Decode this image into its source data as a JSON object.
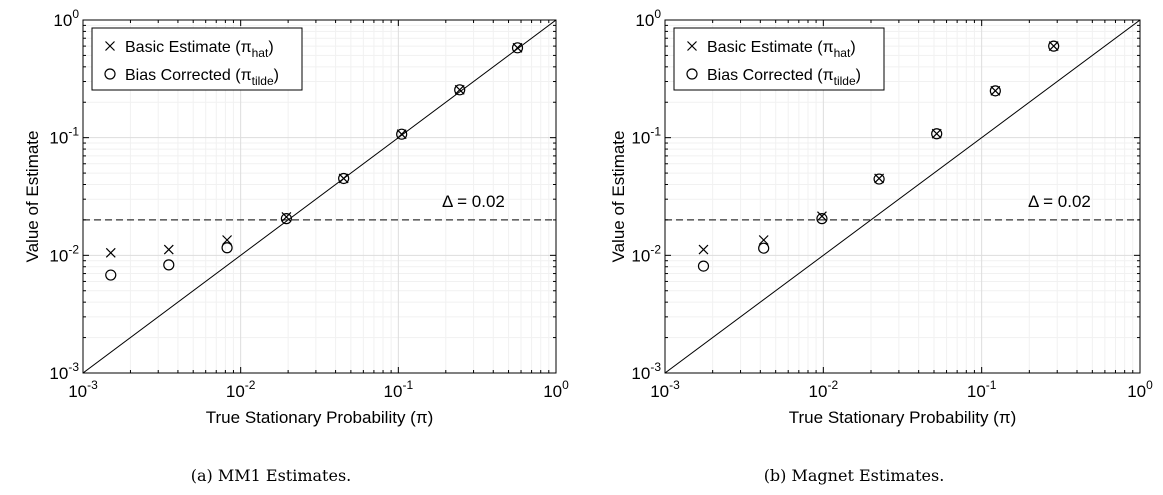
{
  "chart_data": [
    {
      "type": "scatter",
      "caption": "(a) MM1 Estimates.",
      "xlabel": "True Stationary Probability (π)",
      "ylabel": "Value of Estimate",
      "xscale": "log",
      "yscale": "log",
      "xlim": [
        0.001,
        1
      ],
      "ylim": [
        0.001,
        1
      ],
      "grid": true,
      "legend_placement": "top-left",
      "series": [
        {
          "name": "Basic Estimate (π_hat)",
          "marker": "x",
          "x": [
            0.0015,
            0.0035,
            0.0082,
            0.0195,
            0.045,
            0.105,
            0.245,
            0.57
          ],
          "y": [
            0.0105,
            0.0112,
            0.0135,
            0.0212,
            0.045,
            0.107,
            0.255,
            0.58
          ]
        },
        {
          "name": "Bias Corrected (π_tilde)",
          "marker": "o",
          "x": [
            0.0015,
            0.0035,
            0.0082,
            0.0195,
            0.045,
            0.105,
            0.245,
            0.57
          ],
          "y": [
            0.0068,
            0.0083,
            0.0116,
            0.0205,
            0.045,
            0.107,
            0.255,
            0.58
          ]
        }
      ],
      "reference_lines": [
        {
          "kind": "identity",
          "style": "solid"
        },
        {
          "kind": "horizontal",
          "y": 0.02,
          "style": "dashed",
          "label": "Δ = 0.02"
        }
      ]
    },
    {
      "type": "scatter",
      "caption": "(b) Magnet Estimates.",
      "xlabel": "True Stationary Probability (π)",
      "ylabel": "Value of Estimate",
      "xscale": "log",
      "yscale": "log",
      "xlim": [
        0.001,
        1
      ],
      "ylim": [
        0.001,
        1
      ],
      "grid": true,
      "legend_placement": "top-left",
      "series": [
        {
          "name": "Basic Estimate (π_hat)",
          "marker": "x",
          "x": [
            0.00175,
            0.0042,
            0.0098,
            0.0225,
            0.052,
            0.122,
            0.285
          ],
          "y": [
            0.0112,
            0.0135,
            0.0215,
            0.045,
            0.108,
            0.25,
            0.6
          ]
        },
        {
          "name": "Bias Corrected (π_tilde)",
          "marker": "o",
          "x": [
            0.00175,
            0.0042,
            0.0098,
            0.0225,
            0.052,
            0.122,
            0.285
          ],
          "y": [
            0.0081,
            0.0115,
            0.0205,
            0.0445,
            0.108,
            0.25,
            0.6
          ]
        }
      ],
      "reference_lines": [
        {
          "kind": "identity",
          "style": "solid"
        },
        {
          "kind": "horizontal",
          "y": 0.02,
          "style": "dashed",
          "label": "Δ = 0.02"
        }
      ]
    }
  ]
}
